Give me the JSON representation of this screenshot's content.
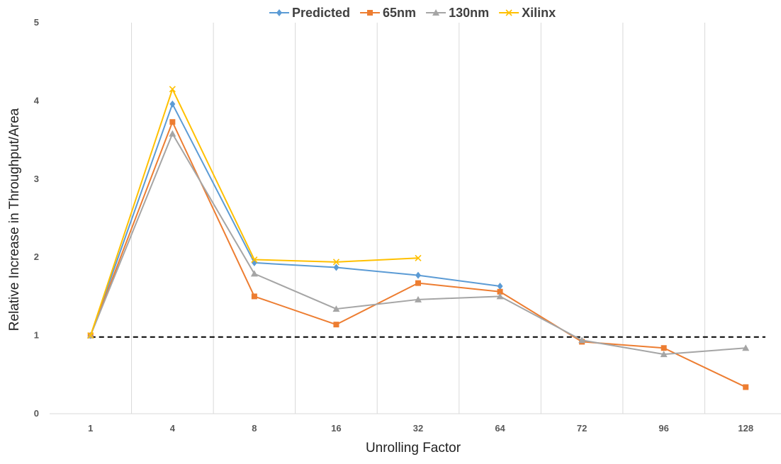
{
  "chart_data": {
    "type": "line",
    "title": "",
    "xlabel": "Unrolling Factor",
    "ylabel": "Relative Increase in Throughput/Area",
    "categories": [
      "1",
      "4",
      "8",
      "16",
      "32",
      "64",
      "72",
      "96",
      "128"
    ],
    "ylim": [
      0,
      5
    ],
    "yticks": [
      0,
      1,
      2,
      3,
      4,
      5
    ],
    "grid": "vertical",
    "legend": "top-center",
    "reference_line": {
      "y": 0.98,
      "style": "dashed",
      "color": "#000000"
    },
    "series": [
      {
        "name": "Predicted",
        "color": "#5B9BD5",
        "marker": "diamond",
        "values": [
          1.0,
          3.96,
          1.93,
          1.87,
          1.77,
          1.63,
          null,
          null,
          null
        ]
      },
      {
        "name": "65nm",
        "color": "#ED7D31",
        "marker": "square",
        "values": [
          1.0,
          3.73,
          1.5,
          1.14,
          1.67,
          1.56,
          0.92,
          0.84,
          0.34
        ]
      },
      {
        "name": "130nm",
        "color": "#A5A5A5",
        "marker": "triangle",
        "values": [
          1.0,
          3.58,
          1.79,
          1.34,
          1.46,
          1.5,
          0.94,
          0.76,
          0.84
        ]
      },
      {
        "name": "Xilinx",
        "color": "#FFC000",
        "marker": "x",
        "values": [
          1.0,
          4.15,
          1.97,
          1.94,
          1.99,
          null,
          null,
          null,
          null
        ]
      }
    ]
  }
}
